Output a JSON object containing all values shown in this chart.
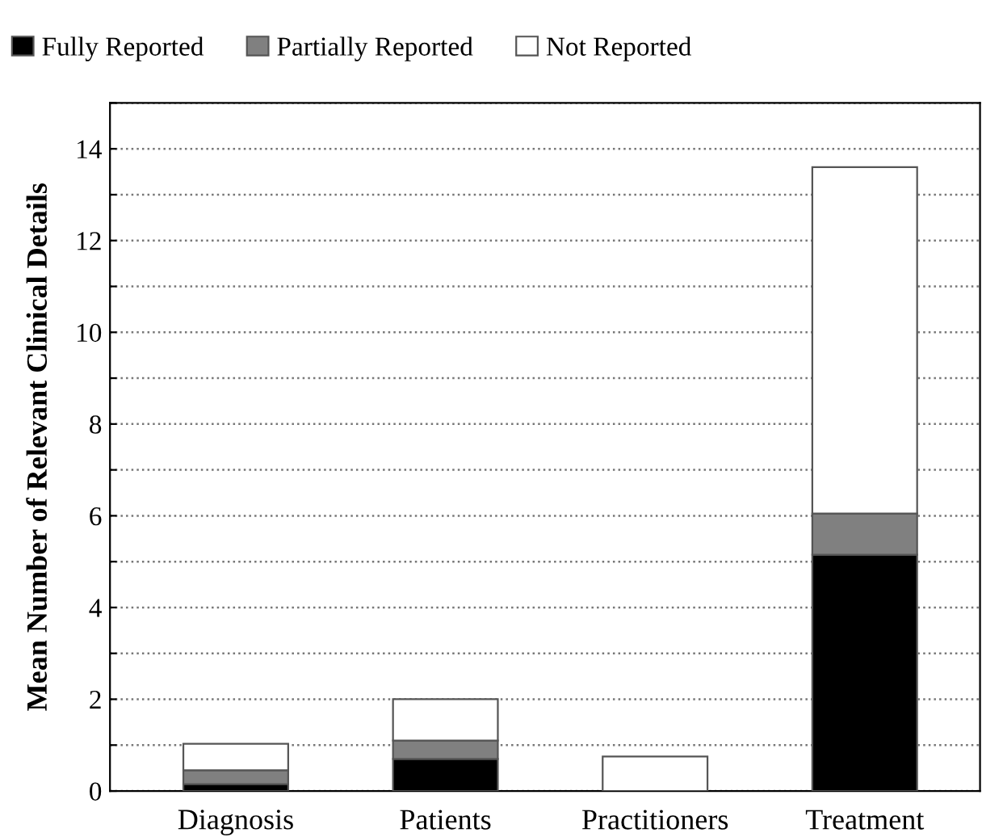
{
  "chart_data": {
    "type": "bar",
    "stacked": true,
    "ylabel": "Mean Number of Relevant Clinical Details",
    "categories": [
      "Diagnosis",
      "Patients",
      "Practitioners",
      "Treatment"
    ],
    "series": [
      {
        "name": "Fully Reported",
        "color": "#000000",
        "values": [
          0.15,
          0.7,
          0,
          5.15
        ]
      },
      {
        "name": "Partially Reported",
        "color": "#808080",
        "values": [
          0.3,
          0.4,
          0,
          0.9
        ]
      },
      {
        "name": "Not Reported",
        "color": "#ffffff",
        "values": [
          0.58,
          0.9,
          0.75,
          7.55
        ]
      }
    ],
    "ylim": [
      0,
      15
    ],
    "yticks": [
      0,
      {
        "value": 1,
        "label": null
      },
      2,
      {
        "value": 3,
        "label": null
      },
      4,
      {
        "value": 5,
        "label": null
      },
      6,
      {
        "value": 7,
        "label": null
      },
      8,
      {
        "value": 9,
        "label": null
      },
      10,
      {
        "value": 11,
        "label": null
      },
      12,
      {
        "value": 13,
        "label": null
      },
      14,
      {
        "value": 15,
        "label": null
      }
    ],
    "grid": "y",
    "legend": "top left"
  }
}
